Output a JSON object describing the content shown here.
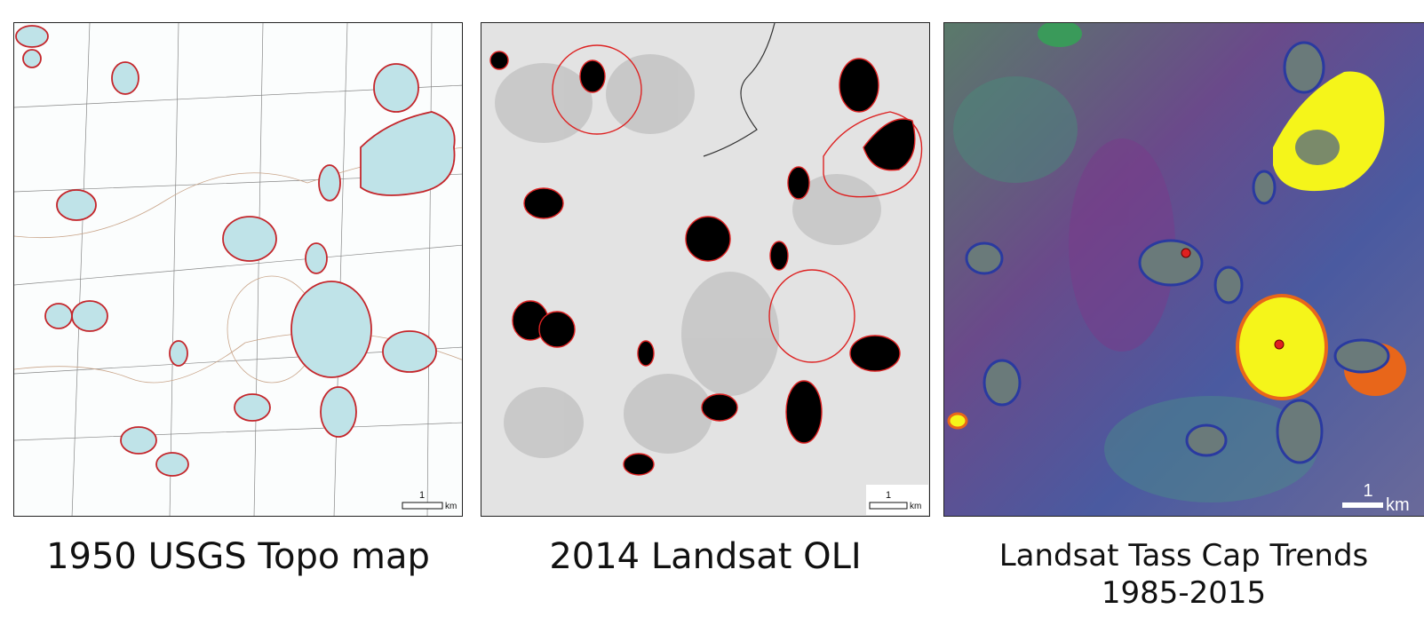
{
  "panels": [
    {
      "caption": "1950 USGS Topo map",
      "scale_value": "1",
      "scale_unit": "km"
    },
    {
      "caption": "2014 Landsat OLI",
      "scale_value": "1",
      "scale_unit": "km"
    },
    {
      "caption": [
        "Landsat Tass Cap Trends",
        "1985-2015"
      ],
      "scale_value": "1",
      "scale_unit": "km"
    }
  ]
}
